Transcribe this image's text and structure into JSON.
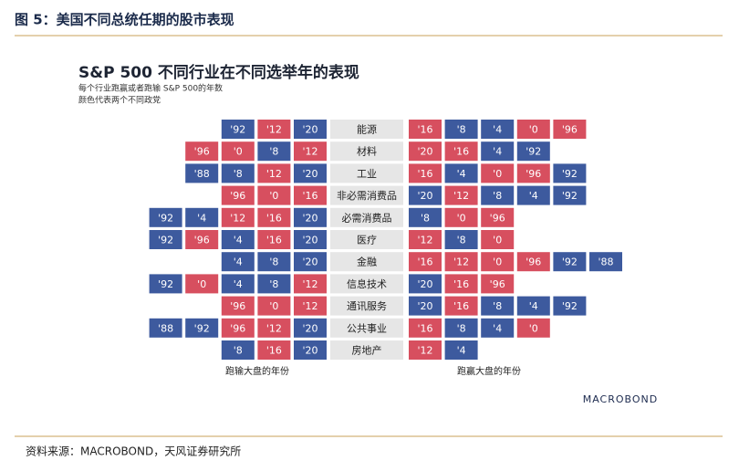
{
  "header": {
    "title": "图 5：美国不同总统任期的股市表现"
  },
  "figure": {
    "title": "S&P 500 不同行业在不同选举年的表现",
    "subtitle_lines": [
      "每个行业跑赢或者跑输 S&P 500的年数",
      "颜色代表两个不同政党"
    ],
    "left_caption": "跑输大盘的年份",
    "right_caption": "跑赢大盘的年份",
    "logo": "MACROBOND",
    "rows": [
      {
        "sector": "能源",
        "left": [
          {
            "text": "'92",
            "color": "#3d5a9e"
          },
          {
            "text": "'12",
            "color": "#d74f5f"
          },
          {
            "text": "'20",
            "color": "#3d5a9e"
          }
        ],
        "right": [
          {
            "text": "'16",
            "color": "#d74f5f"
          },
          {
            "text": "'8",
            "color": "#3d5a9e"
          },
          {
            "text": "'4",
            "color": "#3d5a9e"
          },
          {
            "text": "'0",
            "color": "#d74f5f"
          },
          {
            "text": "'96",
            "color": "#d74f5f"
          }
        ]
      },
      {
        "sector": "材料",
        "left": [
          {
            "text": "'96",
            "color": "#d74f5f"
          },
          {
            "text": "'0",
            "color": "#d74f5f"
          },
          {
            "text": "'8",
            "color": "#3d5a9e"
          },
          {
            "text": "'12",
            "color": "#d74f5f"
          }
        ],
        "right": [
          {
            "text": "'20",
            "color": "#d74f5f"
          },
          {
            "text": "'16",
            "color": "#d74f5f"
          },
          {
            "text": "'4",
            "color": "#3d5a9e"
          },
          {
            "text": "'92",
            "color": "#3d5a9e"
          }
        ]
      },
      {
        "sector": "工业",
        "left": [
          {
            "text": "'88",
            "color": "#3d5a9e"
          },
          {
            "text": "'8",
            "color": "#3d5a9e"
          },
          {
            "text": "'12",
            "color": "#d74f5f"
          },
          {
            "text": "'20",
            "color": "#3d5a9e"
          }
        ],
        "right": [
          {
            "text": "'16",
            "color": "#d74f5f"
          },
          {
            "text": "'4",
            "color": "#3d5a9e"
          },
          {
            "text": "'0",
            "color": "#d74f5f"
          },
          {
            "text": "'96",
            "color": "#d74f5f"
          },
          {
            "text": "'92",
            "color": "#3d5a9e"
          }
        ]
      },
      {
        "sector": "非必需消费品",
        "left": [
          {
            "text": "'96",
            "color": "#d74f5f"
          },
          {
            "text": "'0",
            "color": "#d74f5f"
          },
          {
            "text": "'16",
            "color": "#d74f5f"
          }
        ],
        "right": [
          {
            "text": "'20",
            "color": "#3d5a9e"
          },
          {
            "text": "'12",
            "color": "#d74f5f"
          },
          {
            "text": "'8",
            "color": "#3d5a9e"
          },
          {
            "text": "'4",
            "color": "#3d5a9e"
          },
          {
            "text": "'92",
            "color": "#3d5a9e"
          }
        ]
      },
      {
        "sector": "必需消费品",
        "left": [
          {
            "text": "'92",
            "color": "#3d5a9e"
          },
          {
            "text": "'4",
            "color": "#3d5a9e"
          },
          {
            "text": "'12",
            "color": "#d74f5f"
          },
          {
            "text": "'16",
            "color": "#d74f5f"
          },
          {
            "text": "'20",
            "color": "#3d5a9e"
          }
        ],
        "right": [
          {
            "text": "'8",
            "color": "#3d5a9e"
          },
          {
            "text": "'0",
            "color": "#d74f5f"
          },
          {
            "text": "'96",
            "color": "#d74f5f"
          }
        ]
      },
      {
        "sector": "医疗",
        "left": [
          {
            "text": "'92",
            "color": "#3d5a9e"
          },
          {
            "text": "'96",
            "color": "#d74f5f"
          },
          {
            "text": "'4",
            "color": "#3d5a9e"
          },
          {
            "text": "'16",
            "color": "#d74f5f"
          },
          {
            "text": "'20",
            "color": "#3d5a9e"
          }
        ],
        "right": [
          {
            "text": "'12",
            "color": "#d74f5f"
          },
          {
            "text": "'8",
            "color": "#3d5a9e"
          },
          {
            "text": "'0",
            "color": "#d74f5f"
          }
        ]
      },
      {
        "sector": "金融",
        "left": [
          {
            "text": "'4",
            "color": "#3d5a9e"
          },
          {
            "text": "'8",
            "color": "#3d5a9e"
          },
          {
            "text": "'20",
            "color": "#3d5a9e"
          }
        ],
        "right": [
          {
            "text": "'16",
            "color": "#d74f5f"
          },
          {
            "text": "'12",
            "color": "#d74f5f"
          },
          {
            "text": "'0",
            "color": "#d74f5f"
          },
          {
            "text": "'96",
            "color": "#d74f5f"
          },
          {
            "text": "'92",
            "color": "#3d5a9e"
          },
          {
            "text": "'88",
            "color": "#3d5a9e"
          }
        ]
      },
      {
        "sector": "信息技术",
        "left": [
          {
            "text": "'92",
            "color": "#3d5a9e"
          },
          {
            "text": "'0",
            "color": "#d74f5f"
          },
          {
            "text": "'4",
            "color": "#3d5a9e"
          },
          {
            "text": "'8",
            "color": "#3d5a9e"
          },
          {
            "text": "'12",
            "color": "#d74f5f"
          }
        ],
        "right": [
          {
            "text": "'20",
            "color": "#3d5a9e"
          },
          {
            "text": "'16",
            "color": "#d74f5f"
          },
          {
            "text": "'96",
            "color": "#d74f5f"
          }
        ]
      },
      {
        "sector": "通讯服务",
        "left": [
          {
            "text": "'96",
            "color": "#d74f5f"
          },
          {
            "text": "'0",
            "color": "#d74f5f"
          },
          {
            "text": "'12",
            "color": "#d74f5f"
          }
        ],
        "right": [
          {
            "text": "'20",
            "color": "#3d5a9e"
          },
          {
            "text": "'16",
            "color": "#d74f5f"
          },
          {
            "text": "'8",
            "color": "#3d5a9e"
          },
          {
            "text": "'4",
            "color": "#3d5a9e"
          },
          {
            "text": "'92",
            "color": "#3d5a9e"
          }
        ]
      },
      {
        "sector": "公共事业",
        "left": [
          {
            "text": "'88",
            "color": "#3d5a9e"
          },
          {
            "text": "'92",
            "color": "#3d5a9e"
          },
          {
            "text": "'96",
            "color": "#d74f5f"
          },
          {
            "text": "'12",
            "color": "#d74f5f"
          },
          {
            "text": "'20",
            "color": "#3d5a9e"
          }
        ],
        "right": [
          {
            "text": "'16",
            "color": "#d74f5f"
          },
          {
            "text": "'8",
            "color": "#3d5a9e"
          },
          {
            "text": "'4",
            "color": "#3d5a9e"
          },
          {
            "text": "'0",
            "color": "#d74f5f"
          }
        ]
      },
      {
        "sector": "房地产",
        "left": [
          {
            "text": "'8",
            "color": "#3d5a9e"
          },
          {
            "text": "'16",
            "color": "#d74f5f"
          },
          {
            "text": "'20",
            "color": "#3d5a9e"
          }
        ],
        "right": [
          {
            "text": "'12",
            "color": "#d74f5f"
          },
          {
            "text": "'4",
            "color": "#3d5a9e"
          }
        ]
      }
    ]
  },
  "footer": {
    "source": "资料来源：MACROBOND，天风证券研究所"
  }
}
